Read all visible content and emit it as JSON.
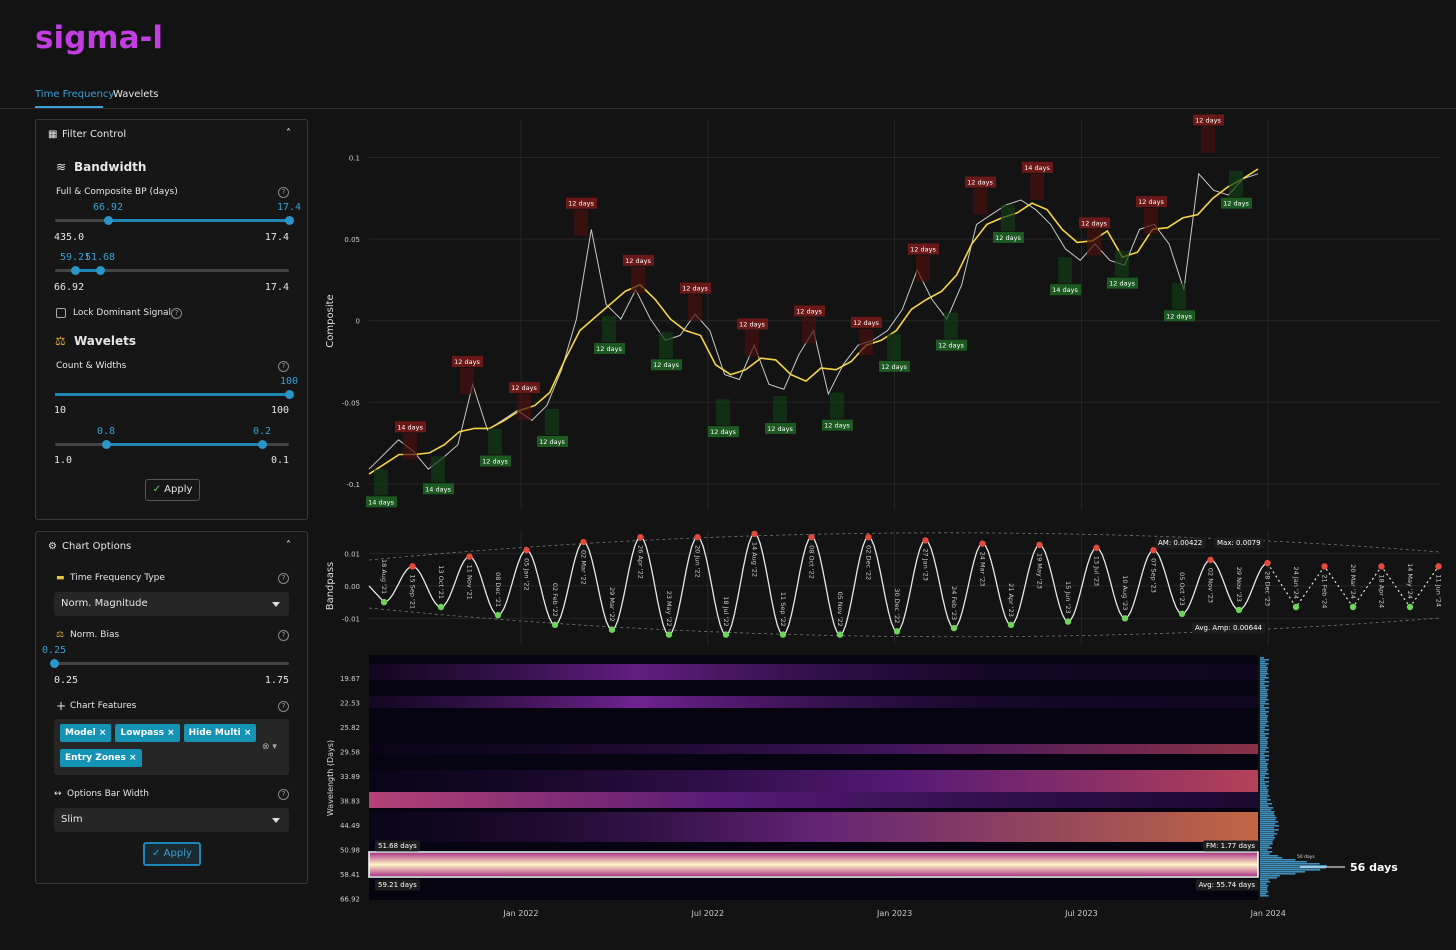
{
  "app": {
    "title": "sigma-l",
    "tabs": [
      "Time Frequency",
      "Wavelets"
    ]
  },
  "filter_control": {
    "title": "Filter Control",
    "bandwidth": {
      "heading": "Bandwidth",
      "label": "Full & Composite BP (days)",
      "slider1": {
        "low": "66.92",
        "high": "17.4",
        "min": "435.0",
        "max": "17.4"
      },
      "slider2": {
        "low": "59.21",
        "high": "51.68",
        "min": "66.92",
        "max": "17.4"
      },
      "lock": "Lock Dominant Signal"
    },
    "wavelets": {
      "heading": "Wavelets",
      "label": "Count & Widths",
      "slider1": {
        "value": "100",
        "min": "10",
        "max": "100"
      },
      "slider2": {
        "low": "0.8",
        "high": "0.2",
        "min": "1.0",
        "max": "0.1"
      }
    },
    "apply": "Apply"
  },
  "chart_options": {
    "title": "Chart Options",
    "tf_type": {
      "label": "Time Frequency Type",
      "value": "Norm. Magnitude"
    },
    "norm_bias": {
      "label": "Norm. Bias",
      "value": "0.25",
      "min": "0.25",
      "max": "1.75"
    },
    "features": {
      "label": "Chart Features",
      "tags": [
        "Model",
        "Lowpass",
        "Hide Multi",
        "Entry Zones"
      ]
    },
    "bar_width": {
      "label": "Options Bar Width",
      "value": "Slim"
    },
    "apply": "Apply"
  },
  "x_axis": {
    "ticks": [
      "Jan 2022",
      "Jul 2022",
      "Jan 2023",
      "Jul 2023",
      "Jan 2024"
    ]
  },
  "composite": {
    "y_label": "Composite",
    "ylim": [
      -0.116,
      0.123
    ],
    "yticks": [
      0.1,
      0.05,
      0,
      -0.05,
      -0.1
    ],
    "values": [
      -0.091,
      -0.082,
      -0.073,
      -0.08,
      -0.091,
      -0.084,
      -0.076,
      -0.039,
      -0.067,
      -0.061,
      -0.055,
      -0.061,
      -0.052,
      -0.03,
      0.001,
      0.056,
      0.01,
      0.001,
      0.019,
      0.001,
      -0.012,
      -0.009,
      0.004,
      -0.006,
      -0.033,
      -0.036,
      -0.015,
      -0.039,
      -0.042,
      -0.021,
      -0.006,
      -0.045,
      -0.027,
      -0.015,
      -0.012,
      -0.006,
      0.007,
      0.031,
      0.013,
      0.001,
      0.022,
      0.059,
      0.065,
      0.071,
      0.074,
      0.068,
      0.059,
      0.044,
      0.037,
      0.047,
      0.037,
      0.034,
      0.056,
      0.059,
      0.047,
      0.019,
      0.09,
      0.08,
      0.077,
      0.087,
      0.09
    ],
    "lowpass": [
      -0.094,
      -0.088,
      -0.082,
      -0.082,
      -0.081,
      -0.076,
      -0.068,
      -0.066,
      -0.066,
      -0.061,
      -0.055,
      -0.052,
      -0.044,
      -0.024,
      -0.006,
      0.002,
      0.01,
      0.018,
      0.022,
      0.013,
      0.001,
      -0.006,
      -0.009,
      -0.027,
      -0.033,
      -0.03,
      -0.023,
      -0.024,
      -0.033,
      -0.037,
      -0.029,
      -0.03,
      -0.025,
      -0.015,
      -0.012,
      -0.006,
      0.007,
      0.013,
      0.018,
      0.028,
      0.047,
      0.059,
      0.063,
      0.066,
      0.072,
      0.068,
      0.056,
      0.048,
      0.049,
      0.055,
      0.039,
      0.042,
      0.056,
      0.057,
      0.063,
      0.065,
      0.075,
      0.082,
      0.087,
      0.093
    ],
    "peaks": [
      {
        "label": "14 days",
        "value": -0.069
      },
      {
        "label": "12 days",
        "value": -0.029
      },
      {
        "label": "12 days",
        "value": -0.045
      },
      {
        "label": "12 days",
        "value": 0.068
      },
      {
        "label": "12 days",
        "value": 0.033
      },
      {
        "label": "12 days",
        "value": 0.016
      },
      {
        "label": "12 days",
        "value": -0.006
      },
      {
        "label": "12 days",
        "value": 0.002
      },
      {
        "label": "12 days",
        "value": -0.005
      },
      {
        "label": "12 days",
        "value": 0.04
      },
      {
        "label": "12 days",
        "value": 0.081
      },
      {
        "label": "14 days",
        "value": 0.09
      },
      {
        "label": "12 days",
        "value": 0.056
      },
      {
        "label": "12 days",
        "value": 0.069
      },
      {
        "label": "12 days",
        "value": 0.119
      }
    ],
    "troughs": [
      {
        "label": "14 days",
        "value": -0.107
      },
      {
        "label": "14 days",
        "value": -0.099
      },
      {
        "label": "12 days",
        "value": -0.082
      },
      {
        "label": "12 days",
        "value": -0.07
      },
      {
        "label": "12 days",
        "value": -0.013
      },
      {
        "label": "12 days",
        "value": -0.023
      },
      {
        "label": "12 days",
        "value": -0.064
      },
      {
        "label": "12 days",
        "value": -0.062
      },
      {
        "label": "12 days",
        "value": -0.06
      },
      {
        "label": "12 days",
        "value": -0.024
      },
      {
        "label": "12 days",
        "value": -0.011
      },
      {
        "label": "12 days",
        "value": 0.055
      },
      {
        "label": "14 days",
        "value": 0.023
      },
      {
        "label": "12 days",
        "value": 0.027
      },
      {
        "label": "12 days",
        "value": 0.007
      },
      {
        "label": "12 days",
        "value": 0.076
      }
    ]
  },
  "bandpass": {
    "y_label": "Bandpass",
    "ylim": [
      -0.0182,
      0.0172
    ],
    "yticks": [
      0.01,
      {
        "value": 0,
        "label": "0.00"
      },
      -0.01
    ],
    "am": "AM: 0.00422",
    "max": "Max: 0.0079",
    "avg_amp": "Avg. Amp: 0.00644",
    "turns": [
      {
        "date": "18 Aug '21",
        "value": -0.005
      },
      {
        "date": "15 Sep '21",
        "value": 0.006
      },
      {
        "date": "13 Oct '21",
        "value": -0.0065
      },
      {
        "date": "11 Nov '21",
        "value": 0.009
      },
      {
        "date": "08 Dec '21",
        "value": -0.009
      },
      {
        "date": "05 Jan '22",
        "value": 0.011
      },
      {
        "date": "02 Feb '22",
        "value": -0.012
      },
      {
        "date": "02 Mar '22",
        "value": 0.0135
      },
      {
        "date": "29 Mar '22",
        "value": -0.0135
      },
      {
        "date": "26 Apr '22",
        "value": 0.015
      },
      {
        "date": "23 May '22",
        "value": -0.015
      },
      {
        "date": "20 Jun '22",
        "value": 0.015
      },
      {
        "date": "18 Jul '22",
        "value": -0.015
      },
      {
        "date": "14 Aug '22",
        "value": 0.016
      },
      {
        "date": "11 Sep '22",
        "value": -0.015
      },
      {
        "date": "08 Oct '22",
        "value": 0.015
      },
      {
        "date": "05 Nov '22",
        "value": -0.015
      },
      {
        "date": "02 Dec '22",
        "value": 0.015
      },
      {
        "date": "30 Dec '22",
        "value": -0.014
      },
      {
        "date": "27 Jan '23",
        "value": 0.014
      },
      {
        "date": "24 Feb '23",
        "value": -0.013
      },
      {
        "date": "24 Mar '23",
        "value": 0.013
      },
      {
        "date": "21 Apr '23",
        "value": -0.012
      },
      {
        "date": "19 May '23",
        "value": 0.0126
      },
      {
        "date": "15 Jun '23",
        "value": -0.011
      },
      {
        "date": "13 Jul '23",
        "value": 0.0117
      },
      {
        "date": "10 Aug '23",
        "value": -0.01
      },
      {
        "date": "07 Sep '23",
        "value": 0.011
      },
      {
        "date": "05 Oct '23",
        "value": -0.0086
      },
      {
        "date": "02 Nov '23",
        "value": 0.008
      },
      {
        "date": "29 Nov '23",
        "value": -0.0074
      },
      {
        "date": "28 Dec '23",
        "value": 0.007
      },
      {
        "date": "24 Jan '24",
        "value": -0.0065,
        "projected": true
      },
      {
        "date": "21 Feb '24",
        "value": 0.006,
        "projected": true
      },
      {
        "date": "20 Mar '24",
        "value": -0.0065,
        "projected": true
      },
      {
        "date": "18 Apr '24",
        "value": 0.006,
        "projected": true
      },
      {
        "date": "14 May '24",
        "value": -0.0065,
        "projected": true
      },
      {
        "date": "11 Jun '24",
        "value": 0.006,
        "projected": true
      }
    ]
  },
  "spectrogram": {
    "y_label": "Wavelength (Days)",
    "yticks": [
      "19.67",
      "22.53",
      "25.82",
      "29.58",
      "33.89",
      "38.83",
      "44.49",
      "50.98",
      "58.41",
      "66.92"
    ],
    "band_high": "51.68 days",
    "band_low": "59.21 days",
    "fm": "FM: 1.77 days",
    "avg": "Avg: 55.74 days",
    "peak": "56 days",
    "minor": "50 days"
  }
}
